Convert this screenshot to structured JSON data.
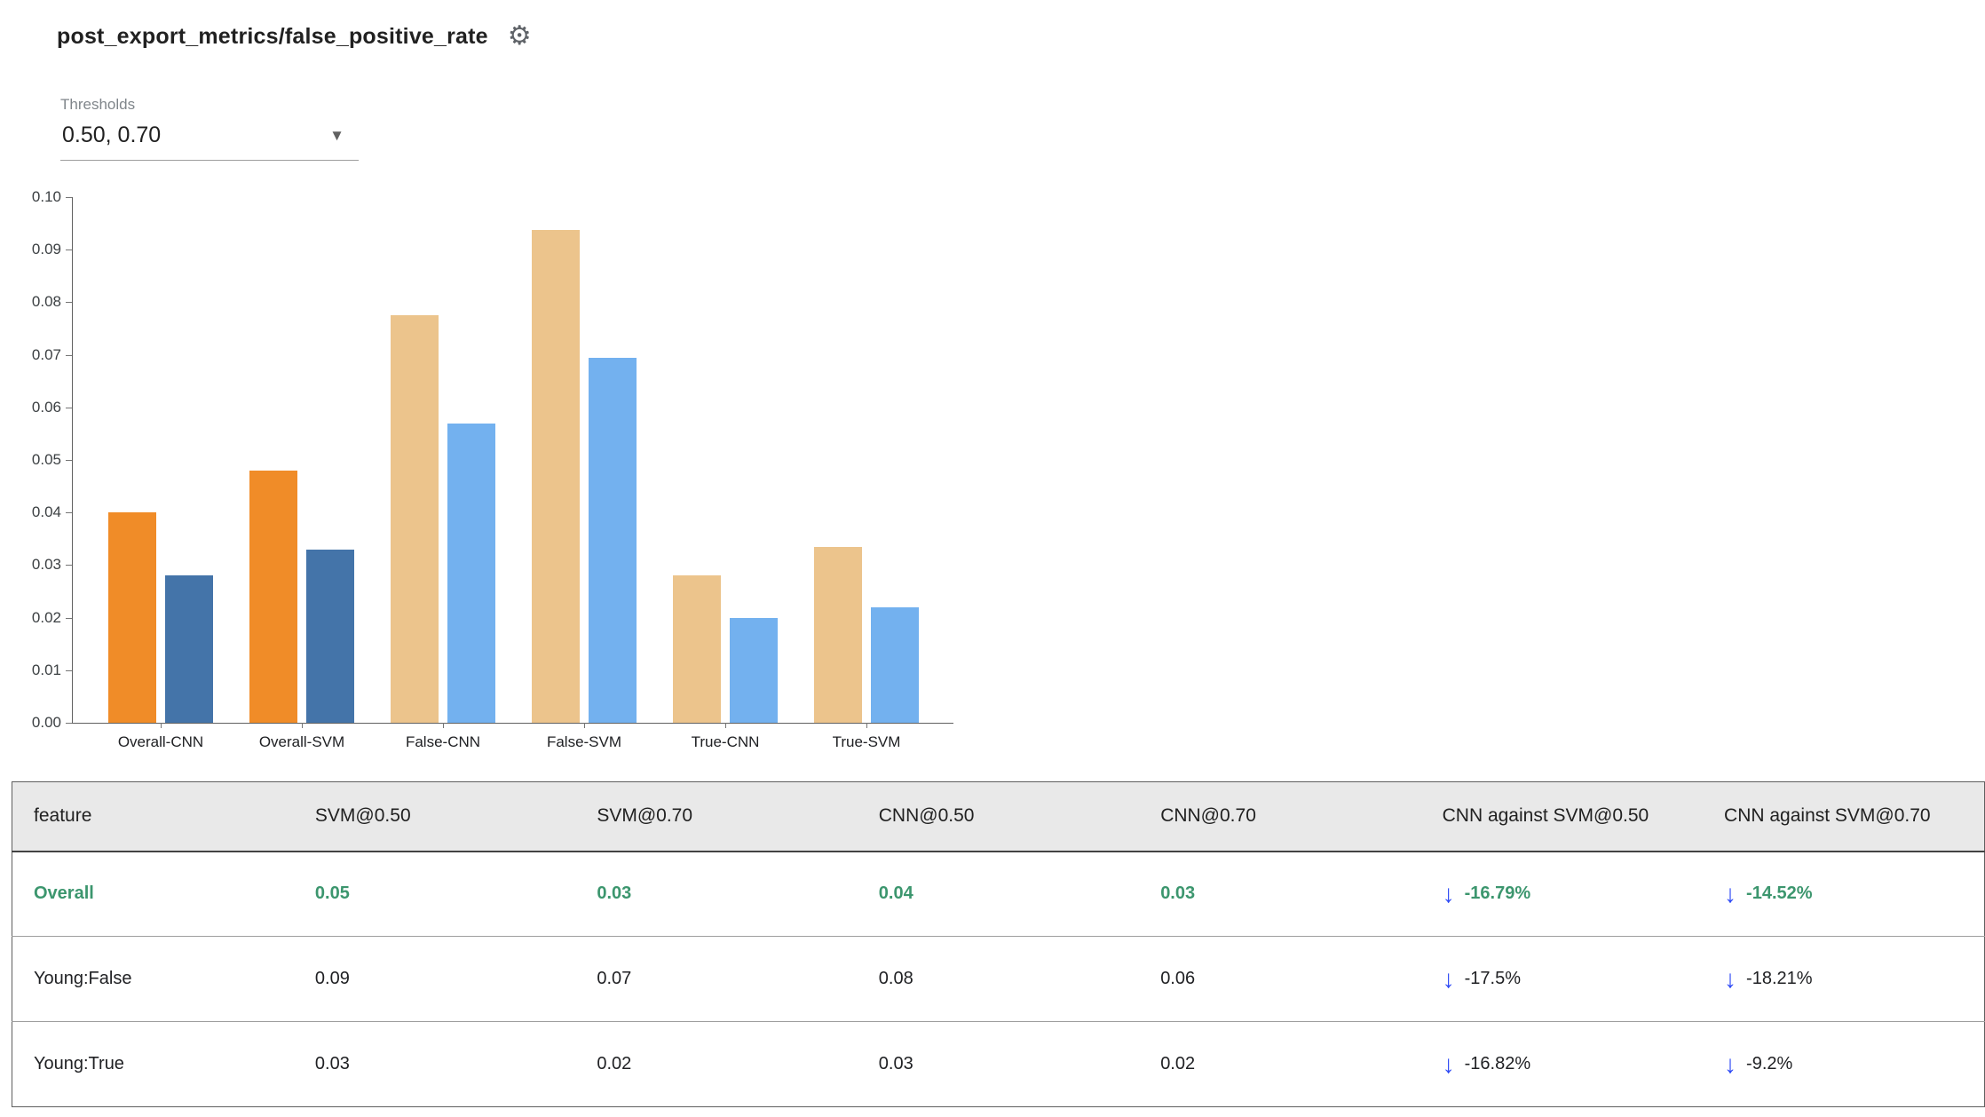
{
  "header": {
    "title": "post_export_metrics/false_positive_rate",
    "settings_icon": "gear-icon"
  },
  "thresholds": {
    "label": "Thresholds",
    "value": "0.50, 0.70"
  },
  "chart_data": {
    "type": "bar",
    "title": "post_export_metrics/false_positive_rate",
    "categories": [
      "Overall-CNN",
      "Overall-SVM",
      "False-CNN",
      "False-SVM",
      "True-CNN",
      "True-SVM"
    ],
    "series": [
      {
        "name": "@0.50",
        "values": [
          0.04,
          0.048,
          0.0775,
          0.0938,
          0.028,
          0.0335
        ]
      },
      {
        "name": "@0.70",
        "values": [
          0.028,
          0.033,
          0.057,
          0.0695,
          0.02,
          0.022
        ]
      }
    ],
    "bar_colors": [
      [
        "#f08c28",
        "#4474a9"
      ],
      [
        "#f08c28",
        "#4474a9"
      ],
      [
        "#ecc48c",
        "#73b1ef"
      ],
      [
        "#ecc48c",
        "#73b1ef"
      ],
      [
        "#ecc48c",
        "#73b1ef"
      ],
      [
        "#ecc48c",
        "#73b1ef"
      ]
    ],
    "xlabel": "",
    "ylabel": "",
    "ylim": [
      0,
      0.1
    ],
    "ytick_step": 0.01,
    "grid": false,
    "legend_position": "none"
  },
  "table": {
    "columns": [
      "feature",
      "SVM@0.50",
      "SVM@0.70",
      "CNN@0.50",
      "CNN@0.70",
      "CNN against SVM@0.50",
      "CNN against SVM@0.70"
    ],
    "rows": [
      {
        "feature": "Overall",
        "values": [
          "0.05",
          "0.03",
          "0.04",
          "0.03"
        ],
        "deltas": [
          "-16.79%",
          "-14.52%"
        ],
        "highlight": true
      },
      {
        "feature": "Young:False",
        "values": [
          "0.09",
          "0.07",
          "0.08",
          "0.06"
        ],
        "deltas": [
          "-17.5%",
          "-18.21%"
        ],
        "highlight": false
      },
      {
        "feature": "Young:True",
        "values": [
          "0.03",
          "0.02",
          "0.03",
          "0.02"
        ],
        "deltas": [
          "-16.82%",
          "-9.2%"
        ],
        "highlight": false
      }
    ]
  },
  "colors": {
    "highlight_green": "#3c966e",
    "arrow_blue": "#2f4bf5",
    "header_bg": "#e9e9e9",
    "axis": "#616161"
  }
}
